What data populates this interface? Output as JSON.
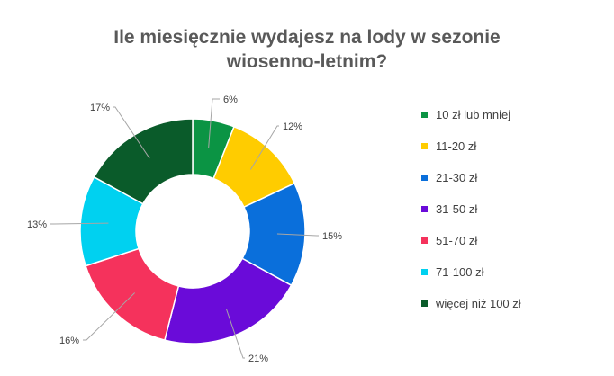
{
  "chart_data": {
    "type": "pie",
    "donut": true,
    "title_lines": [
      "Ile miesięcznie wydajesz na lody w sezonie",
      "wiosenno-letnim?"
    ],
    "categories": [
      "10 zł lub mniej",
      "11-20 zł",
      "21-30 zł",
      "31-50 zł",
      "51-70 zł",
      "71-100 zł",
      "więcej niż 100 zł"
    ],
    "values": [
      6,
      12,
      15,
      21,
      16,
      13,
      17
    ],
    "value_labels": [
      "6%",
      "12%",
      "15%",
      "21%",
      "16%",
      "13%",
      "17%"
    ],
    "colors": [
      "#0b9444",
      "#ffcc00",
      "#0a6fdb",
      "#6a0bd9",
      "#f5325c",
      "#00d1f0",
      "#0a5b2a"
    ],
    "legend_position": "right"
  }
}
